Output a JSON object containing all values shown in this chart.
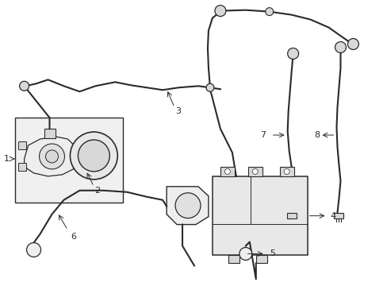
{
  "bg_color": "#ffffff",
  "line_color": "#2a2a2a",
  "text_color": "#111111",
  "fig_width": 4.89,
  "fig_height": 3.6,
  "dpi": 100,
  "lw_pipe": 1.5,
  "lw_comp": 1.0,
  "gray_fill": "#d8d8d8",
  "light_fill": "#eeeeee",
  "box_fill": "#f0f0f0"
}
